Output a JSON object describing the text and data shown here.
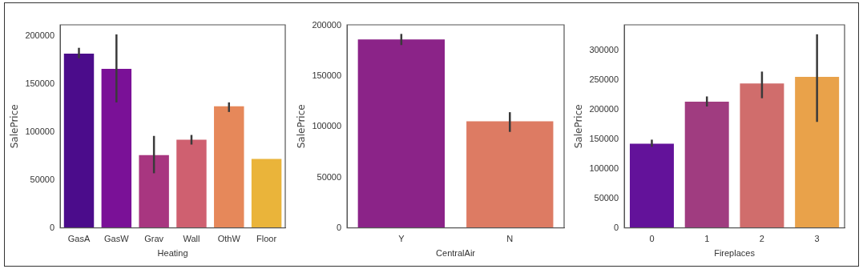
{
  "chart_data": [
    {
      "type": "bar",
      "xlabel": "Heating",
      "ylabel": "SalePrice",
      "categories": [
        "GasA",
        "GasW",
        "Grav",
        "Wall",
        "OthW",
        "Floor"
      ],
      "values": [
        182000,
        166000,
        76000,
        92000,
        127000,
        72000
      ],
      "colors": [
        "#4b0c8b",
        "#7a1197",
        "#a83680",
        "#cf6070",
        "#e6885a",
        "#eab43a"
      ],
      "errors": [
        [
          177000,
          188000
        ],
        [
          131000,
          202000
        ],
        [
          57000,
          96000
        ],
        [
          87000,
          97000
        ],
        [
          121000,
          131000
        ],
        null
      ],
      "ylim": [
        0,
        212000
      ],
      "yticks": [
        0,
        50000,
        100000,
        150000,
        200000
      ],
      "grid": false,
      "legend": false
    },
    {
      "type": "bar",
      "xlabel": "CentralAir",
      "ylabel": "SalePrice",
      "categories": [
        "Y",
        "N"
      ],
      "values": [
        186500,
        105500
      ],
      "colors": [
        "#8b2388",
        "#dd7b63"
      ],
      "errors": [
        [
          181000,
          192000
        ],
        [
          95000,
          114500
        ]
      ],
      "ylim": [
        0,
        201000
      ],
      "yticks": [
        0,
        50000,
        100000,
        150000,
        200000
      ],
      "grid": false,
      "legend": false
    },
    {
      "type": "bar",
      "xlabel": "Fireplaces",
      "ylabel": "SalePrice",
      "categories": [
        "0",
        "1",
        "2",
        "3"
      ],
      "values": [
        142000,
        213000,
        244000,
        255000
      ],
      "colors": [
        "#63129a",
        "#a03c80",
        "#d06d6c",
        "#e9a24a"
      ],
      "errors": [
        [
          137000,
          149000
        ],
        [
          205000,
          222000
        ],
        [
          219000,
          264000
        ],
        [
          179000,
          327000
        ]
      ],
      "ylim": [
        0,
        343000
      ],
      "yticks": [
        0,
        50000,
        100000,
        150000,
        200000,
        250000,
        300000
      ],
      "grid": false,
      "legend": false
    }
  ]
}
